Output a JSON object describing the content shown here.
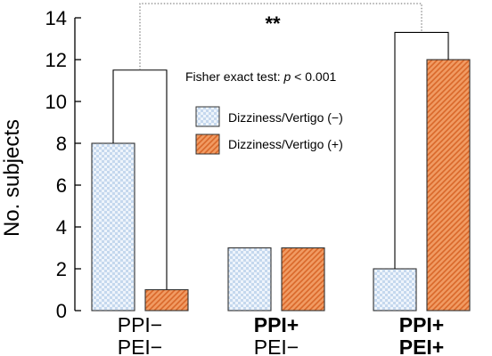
{
  "chart_data": {
    "type": "bar",
    "ylabel": "No. subjects",
    "ylim": [
      0,
      14
    ],
    "yticks": [
      0,
      2,
      4,
      6,
      8,
      10,
      12,
      14
    ],
    "categories": [
      {
        "line1": "PPI−",
        "line2": "PEI−",
        "bold1": false,
        "bold2": false
      },
      {
        "line1": "PPI+",
        "line2": "PEI−",
        "bold1": true,
        "bold2": false
      },
      {
        "line1": "PPI+",
        "line2": "PEI+",
        "bold1": true,
        "bold2": true
      }
    ],
    "series": [
      {
        "name": "Dizziness/Vertigo (−)",
        "values": [
          8,
          3,
          2
        ],
        "color": "#dde9f6",
        "pattern": "checker-blue"
      },
      {
        "name": "Dizziness/Vertigo (+)",
        "values": [
          1,
          3,
          12
        ],
        "color": "#e8844a",
        "pattern": "hatch-orange"
      }
    ],
    "annotation": {
      "test_prefix": "Fisher exact test: ",
      "test_p": "p",
      "test_suffix": " < 0.001",
      "significance": "**"
    },
    "legend_position": "upper-center",
    "grid": false
  }
}
